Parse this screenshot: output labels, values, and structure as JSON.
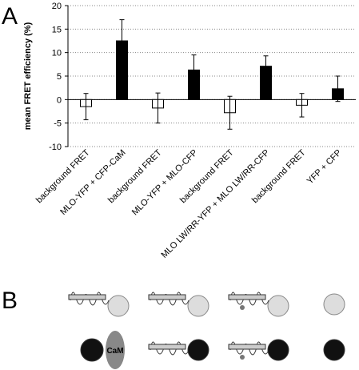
{
  "chart_data": {
    "type": "bar",
    "y_label": "mean FRET efficiency (%)",
    "categories": [
      "background FRET",
      "MLO-YFP + CFP-CaM",
      "background FRET",
      "MLO-YFP + MLO-CFP",
      "background FRET",
      "MLO LW/RR-YFP + MLO LW/RR-CFP",
      "background FRET",
      "YFP + CFP"
    ],
    "values": [
      -1.5,
      12.5,
      -1.8,
      6.3,
      -2.8,
      7.1,
      -1.2,
      2.3
    ],
    "errors": [
      2.8,
      4.5,
      3.2,
      3.2,
      3.5,
      2.2,
      2.5,
      2.7
    ],
    "colors": [
      "#ffffff",
      "#000000",
      "#ffffff",
      "#000000",
      "#ffffff",
      "#000000",
      "#ffffff",
      "#000000"
    ],
    "ylim": [
      -10,
      20
    ],
    "yticks": [
      -10,
      -5,
      0,
      5,
      10,
      15,
      20
    ],
    "grid": true
  },
  "panel_labels": [
    "A",
    "B"
  ],
  "diagram": {
    "cam_label": "CaM"
  }
}
